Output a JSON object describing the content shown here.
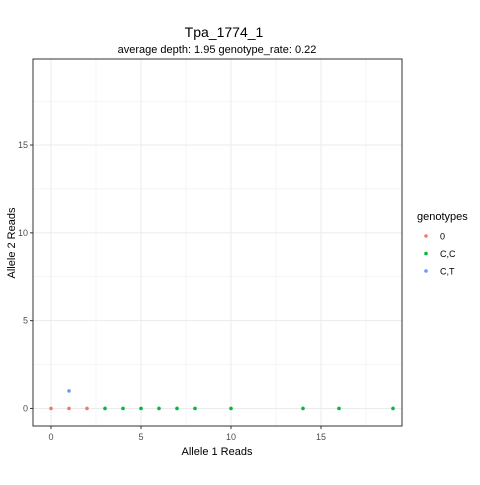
{
  "chart_data": {
    "type": "scatter",
    "title": "Tpa_1774_1",
    "subtitle": "average depth:  1.95  genotype_rate:  0.22",
    "xlabel": "Allele 1 Reads",
    "ylabel": "Allele 2 Reads",
    "xlim": [
      -1,
      19.5
    ],
    "ylim": [
      -1,
      19.9
    ],
    "x_ticks": [
      0,
      5,
      10,
      15
    ],
    "x_tick_labels": [
      "0",
      "5",
      "10",
      "15"
    ],
    "y_ticks": [
      0,
      5,
      10,
      15
    ],
    "y_tick_labels": [
      "0",
      "5",
      "10",
      "15"
    ],
    "grid": true,
    "legend": {
      "title": "genotypes",
      "placement": "right"
    },
    "series": [
      {
        "name": "0",
        "color": "#F8766D",
        "points": [
          [
            0,
            0
          ],
          [
            1,
            0
          ],
          [
            2,
            0
          ]
        ]
      },
      {
        "name": "C,C",
        "color": "#00BA38",
        "points": [
          [
            3,
            0
          ],
          [
            4,
            0
          ],
          [
            5,
            0
          ],
          [
            6,
            0
          ],
          [
            7,
            0
          ],
          [
            8,
            0
          ],
          [
            10,
            0
          ],
          [
            14,
            0
          ],
          [
            16,
            0
          ],
          [
            19,
            0
          ]
        ]
      },
      {
        "name": "C,T",
        "color": "#619CFF",
        "points": [
          [
            1,
            1
          ]
        ]
      }
    ]
  }
}
